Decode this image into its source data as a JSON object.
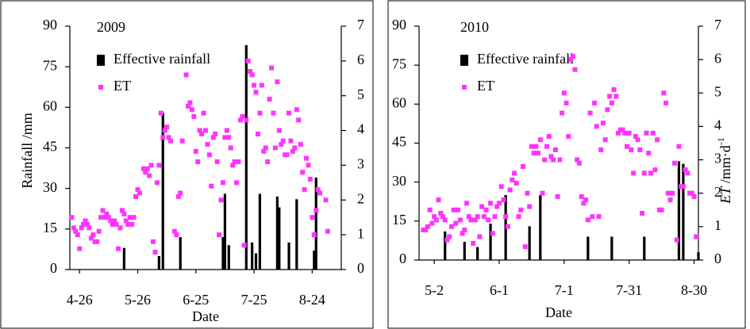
{
  "chart_data": [
    {
      "type": "combo",
      "title": "2009",
      "xlabel": "Date",
      "ylabel": "Rainfall /mm",
      "xlim": [
        111,
        251
      ],
      "xticks": [
        {
          "value": 116,
          "label": "4-26"
        },
        {
          "value": 146,
          "label": "5-26"
        },
        {
          "value": 176,
          "label": "6-25"
        },
        {
          "value": 206,
          "label": "7-25"
        },
        {
          "value": 236,
          "label": "8-24"
        }
      ],
      "ylim": [
        0,
        90
      ],
      "yticks": [
        0,
        15,
        30,
        45,
        60,
        75,
        90
      ],
      "y2lim": [
        0,
        7
      ],
      "y2ticks": [
        0,
        1,
        2,
        3,
        4,
        5,
        6,
        7
      ],
      "series": [
        {
          "name": "Effective rainfall",
          "type": "bar",
          "color": "#000000",
          "x": [
            139,
            157,
            159,
            168,
            190,
            191,
            193,
            202,
            205,
            207,
            209,
            218,
            219,
            224,
            228,
            237,
            238
          ],
          "values": [
            8,
            5,
            58,
            12,
            12,
            28,
            9,
            83,
            10,
            6,
            28,
            27,
            23,
            10,
            26,
            7,
            34
          ]
        },
        {
          "name": "ET",
          "type": "scatter",
          "color": "#ff33ff",
          "axis": "y2",
          "x": [
            112,
            113,
            114,
            115,
            116,
            117,
            118,
            119,
            120,
            121,
            122,
            123,
            124,
            125,
            126,
            127,
            128,
            129,
            130,
            131,
            132,
            133,
            134,
            135,
            136,
            137,
            138,
            139,
            140,
            141,
            142,
            143,
            144,
            145,
            146,
            147,
            149,
            150,
            151,
            152,
            153,
            154,
            155,
            156,
            157,
            158,
            159,
            160,
            161,
            162,
            163,
            165,
            166,
            167,
            168,
            169,
            171,
            172,
            173,
            174,
            175,
            176,
            177,
            178,
            179,
            180,
            181,
            182,
            183,
            184,
            185,
            186,
            187,
            188,
            189,
            190,
            191,
            192,
            193,
            194,
            195,
            196,
            197,
            198,
            199,
            200,
            201,
            202,
            203,
            204,
            205,
            206,
            207,
            208,
            209,
            210,
            211,
            212,
            213,
            214,
            215,
            216,
            217,
            218,
            219,
            220,
            221,
            222,
            223,
            224,
            225,
            226,
            227,
            228,
            229,
            230,
            231,
            232,
            233,
            234,
            235,
            236,
            237,
            238,
            239,
            240,
            243,
            244
          ],
          "values": [
            1.5,
            1.2,
            1.1,
            1.0,
            0.6,
            1.2,
            1.3,
            1.4,
            1.3,
            1.2,
            0.9,
            1.0,
            0.8,
            0.8,
            1.1,
            1.5,
            1.7,
            1.5,
            1.6,
            1.5,
            1.4,
            1.3,
            1.4,
            1.3,
            0.6,
            1.2,
            1.7,
            1.6,
            1.4,
            1.3,
            1.5,
            1.3,
            1.5,
            2.1,
            2.3,
            2.2,
            2.9,
            2.8,
            2.9,
            2.7,
            3.0,
            0.8,
            0.5,
            2.5,
            3.0,
            4.5,
            3.8,
            4.0,
            4.1,
            3.8,
            3.7,
            1.1,
            1.0,
            2.1,
            2.2,
            3.7,
            5.6,
            4.7,
            4.8,
            4.6,
            4.4,
            3.4,
            3.1,
            4.0,
            3.9,
            4.5,
            4.0,
            3.6,
            3.3,
            2.4,
            3.8,
            3.9,
            3.1,
            1.0,
            2.0,
            2.5,
            3.8,
            4.0,
            3.8,
            3.5,
            3.0,
            3.1,
            2.5,
            3.1,
            4.3,
            4.4,
            0.7,
            4.3,
            6.0,
            5.7,
            5.6,
            5.3,
            5.1,
            3.9,
            4.5,
            5.3,
            3.4,
            3.5,
            3.1,
            4.9,
            5.8,
            4.5,
            3.5,
            5.4,
            4.0,
            3.6,
            3.7,
            3.3,
            3.3,
            4.5,
            3.7,
            3.4,
            3.5,
            4.6,
            4.3,
            3.6,
            2.8,
            2.3,
            3.2,
            3.0,
            2.6,
            1.5,
            1.0,
            1.7,
            2.3,
            2.2,
            2.0,
            1.1
          ]
        }
      ]
    },
    {
      "type": "combo",
      "title": "2010",
      "xlabel": "Date",
      "y2label": [
        "ET",
        " /mm·d",
        "-1"
      ],
      "xlim": [
        115,
        244
      ],
      "xticks": [
        {
          "value": 122,
          "label": "5-2"
        },
        {
          "value": 152,
          "label": "6-1"
        },
        {
          "value": 182,
          "label": "7-1"
        },
        {
          "value": 212,
          "label": "7-31"
        },
        {
          "value": 242,
          "label": "8-30"
        }
      ],
      "ylim": [
        0,
        90
      ],
      "yticks": [
        0,
        15,
        30,
        45,
        60,
        75,
        90
      ],
      "y2lim": [
        0,
        7
      ],
      "y2ticks": [
        0,
        1,
        2,
        3,
        4,
        5,
        6,
        7
      ],
      "series": [
        {
          "name": "Effective rainfall",
          "type": "bar",
          "color": "#000000",
          "x": [
            127,
            136,
            142,
            148,
            155,
            166,
            171,
            193,
            204,
            219,
            235,
            237,
            244
          ],
          "values": [
            11,
            7,
            5,
            14,
            25,
            13,
            25,
            9,
            9,
            9,
            38,
            37,
            3
          ]
        },
        {
          "name": "ET",
          "type": "scatter",
          "color": "#ff33ff",
          "axis": "y2",
          "x": [
            117,
            118,
            119,
            120,
            121,
            122,
            123,
            124,
            125,
            126,
            127,
            128,
            129,
            130,
            131,
            132,
            133,
            134,
            135,
            136,
            137,
            138,
            139,
            140,
            141,
            142,
            143,
            144,
            145,
            146,
            147,
            148,
            149,
            150,
            151,
            152,
            153,
            154,
            155,
            156,
            157,
            158,
            159,
            160,
            161,
            162,
            163,
            164,
            165,
            166,
            167,
            168,
            169,
            170,
            171,
            172,
            173,
            174,
            175,
            176,
            177,
            178,
            179,
            180,
            181,
            182,
            183,
            184,
            185,
            186,
            187,
            188,
            189,
            190,
            191,
            192,
            193,
            194,
            195,
            196,
            197,
            198,
            199,
            200,
            201,
            202,
            203,
            204,
            205,
            206,
            207,
            208,
            209,
            210,
            211,
            212,
            213,
            214,
            215,
            216,
            217,
            218,
            219,
            220,
            221,
            222,
            223,
            224,
            225,
            226,
            227,
            228,
            229,
            230,
            231,
            232,
            233,
            234,
            235,
            236,
            237,
            238,
            239,
            240,
            241,
            242,
            243
          ],
          "values": [
            0.9,
            0.9,
            1.0,
            1.5,
            1.1,
            1.3,
            1.2,
            1.8,
            1.4,
            1.3,
            1.2,
            0.6,
            0.7,
            1.0,
            1.5,
            1.1,
            1.5,
            1.2,
            0.8,
            0.9,
            1.7,
            1.3,
            1.2,
            0.5,
            1.2,
            1.3,
            0.7,
            1.6,
            1.3,
            1.5,
            1.2,
            1.7,
            0.8,
            1.3,
            1.6,
            1.7,
            2.2,
            1.8,
            1.3,
            1.0,
            2.1,
            2.4,
            2.6,
            2.3,
            1.3,
            1.5,
            2.8,
            0.4,
            2.0,
            1.6,
            3.4,
            3.2,
            3.4,
            3.2,
            3.6,
            2.0,
            3.0,
            3.4,
            3.7,
            3.1,
            3.0,
            3.3,
            1.9,
            3.0,
            4.4,
            5.0,
            4.7,
            3.7,
            6.0,
            6.1,
            5.7,
            3.0,
            2.9,
            1.9,
            1.7,
            1.8,
            1.2,
            4.4,
            1.3,
            4.7,
            4.0,
            1.3,
            3.3,
            4.1,
            3.6,
            4.5,
            4.9,
            4.7,
            5.1,
            4.9,
            3.8,
            3.9,
            3.9,
            3.8,
            3.4,
            3.8,
            3.3,
            2.6,
            3.7,
            3.6,
            3.3,
            1.4,
            2.6,
            3.8,
            3.2,
            2.6,
            3.8,
            2.7,
            3.6,
            1.5,
            1.5,
            5.0,
            4.7,
            2.0,
            1.8,
            2.0,
            2.9,
            0.6,
            3.4,
            2.2,
            2.2,
            2.7,
            2.6,
            2.0,
            2.0,
            1.9,
            0.7
          ]
        }
      ]
    }
  ]
}
